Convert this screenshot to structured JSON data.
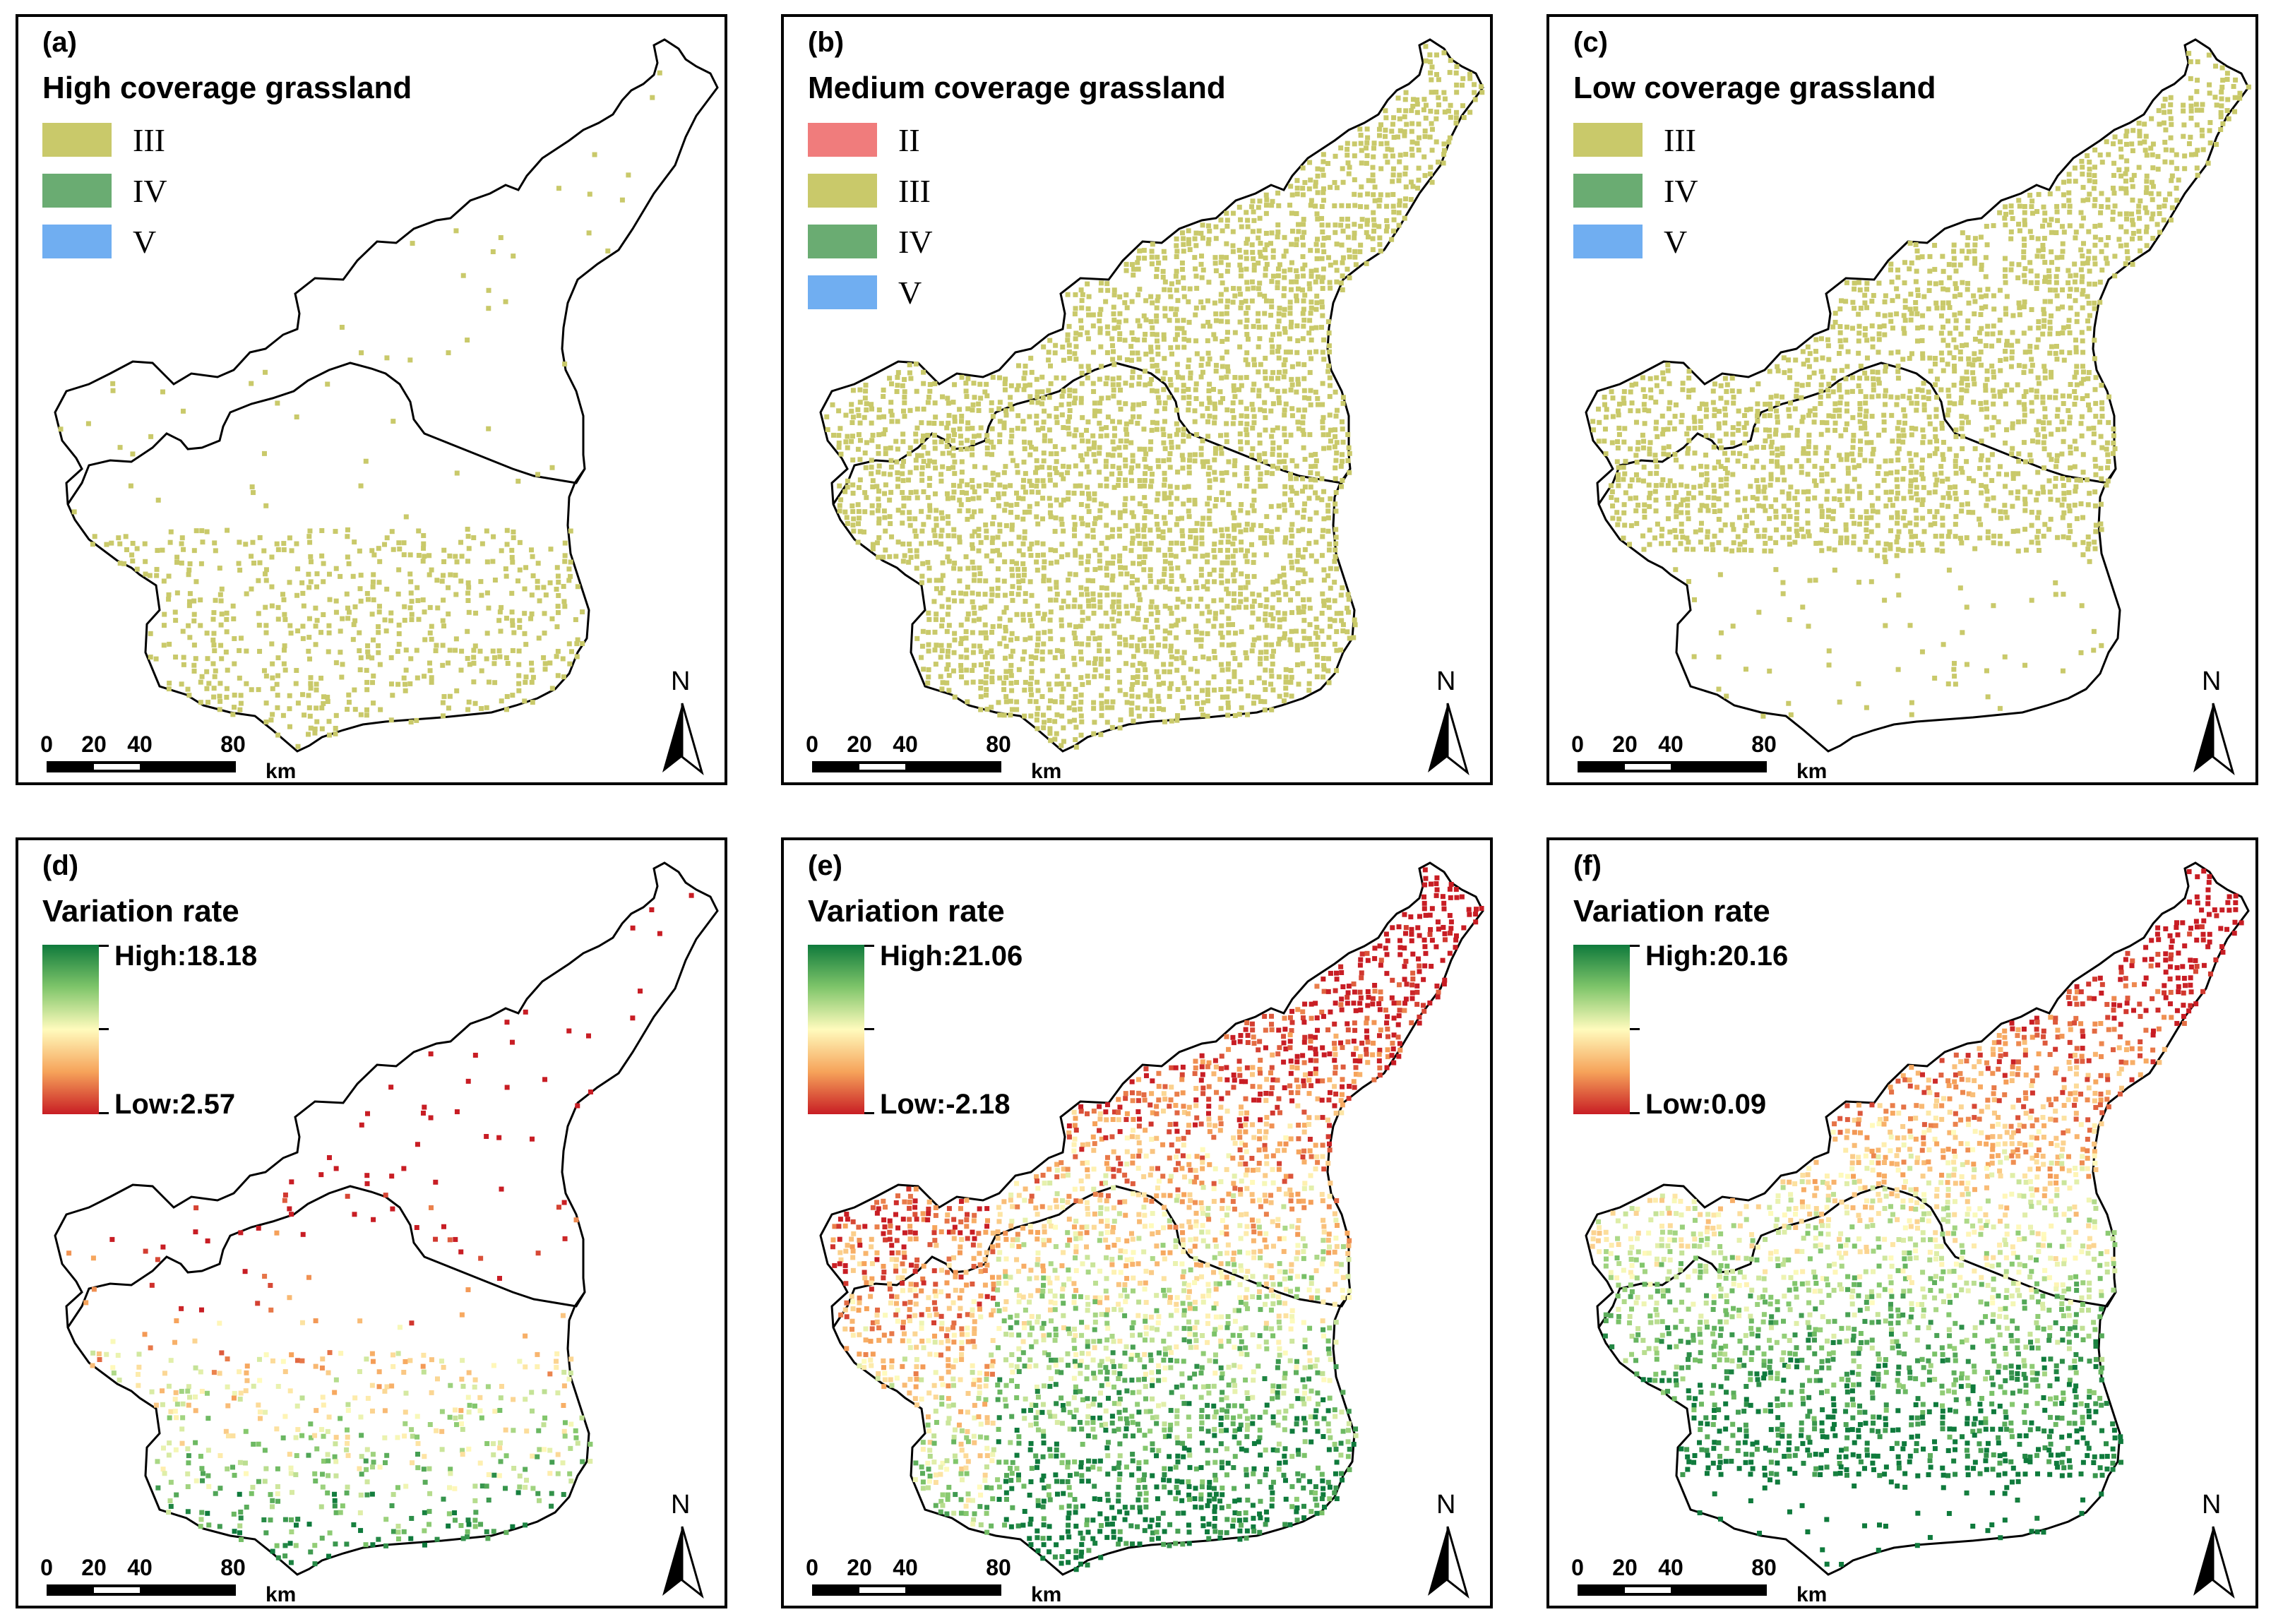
{
  "panels": {
    "a": {
      "label": "(a)",
      "title": "High coverage grassland",
      "legend": [
        {
          "label": "III",
          "color": "#c9c96a"
        },
        {
          "label": "IV",
          "color": "#6aac72"
        },
        {
          "label": "V",
          "color": "#70aef1"
        }
      ]
    },
    "b": {
      "label": "(b)",
      "title": "Medium coverage grassland",
      "legend": [
        {
          "label": "II",
          "color": "#f07c7c"
        },
        {
          "label": "III",
          "color": "#c9c96a"
        },
        {
          "label": "IV",
          "color": "#6aac72"
        },
        {
          "label": "V",
          "color": "#70aef1"
        }
      ]
    },
    "c": {
      "label": "(c)",
      "title": "Low coverage grassland",
      "legend": [
        {
          "label": "III",
          "color": "#c9c96a"
        },
        {
          "label": "IV",
          "color": "#6aac72"
        },
        {
          "label": "V",
          "color": "#70aef1"
        }
      ]
    },
    "d": {
      "label": "(d)",
      "title": "Variation rate",
      "high": "High:18.18",
      "low": "Low:2.57"
    },
    "e": {
      "label": "(e)",
      "title": "Variation rate",
      "high": "High:21.06",
      "low": "Low:-2.18"
    },
    "f": {
      "label": "(f)",
      "title": "Variation rate",
      "high": "High:20.16",
      "low": "Low:0.09"
    }
  },
  "scale_bar": {
    "ticks": [
      "0",
      "20",
      "40",
      "80"
    ],
    "unit": "km"
  },
  "north_arrow": {
    "letter": "N"
  },
  "colors": {
    "class_III": "#c9c96a",
    "ramp_high": "#0f7a3c",
    "ramp_mid": "#fffbbd",
    "ramp_low": "#c81d24",
    "boundary": "#000000"
  }
}
